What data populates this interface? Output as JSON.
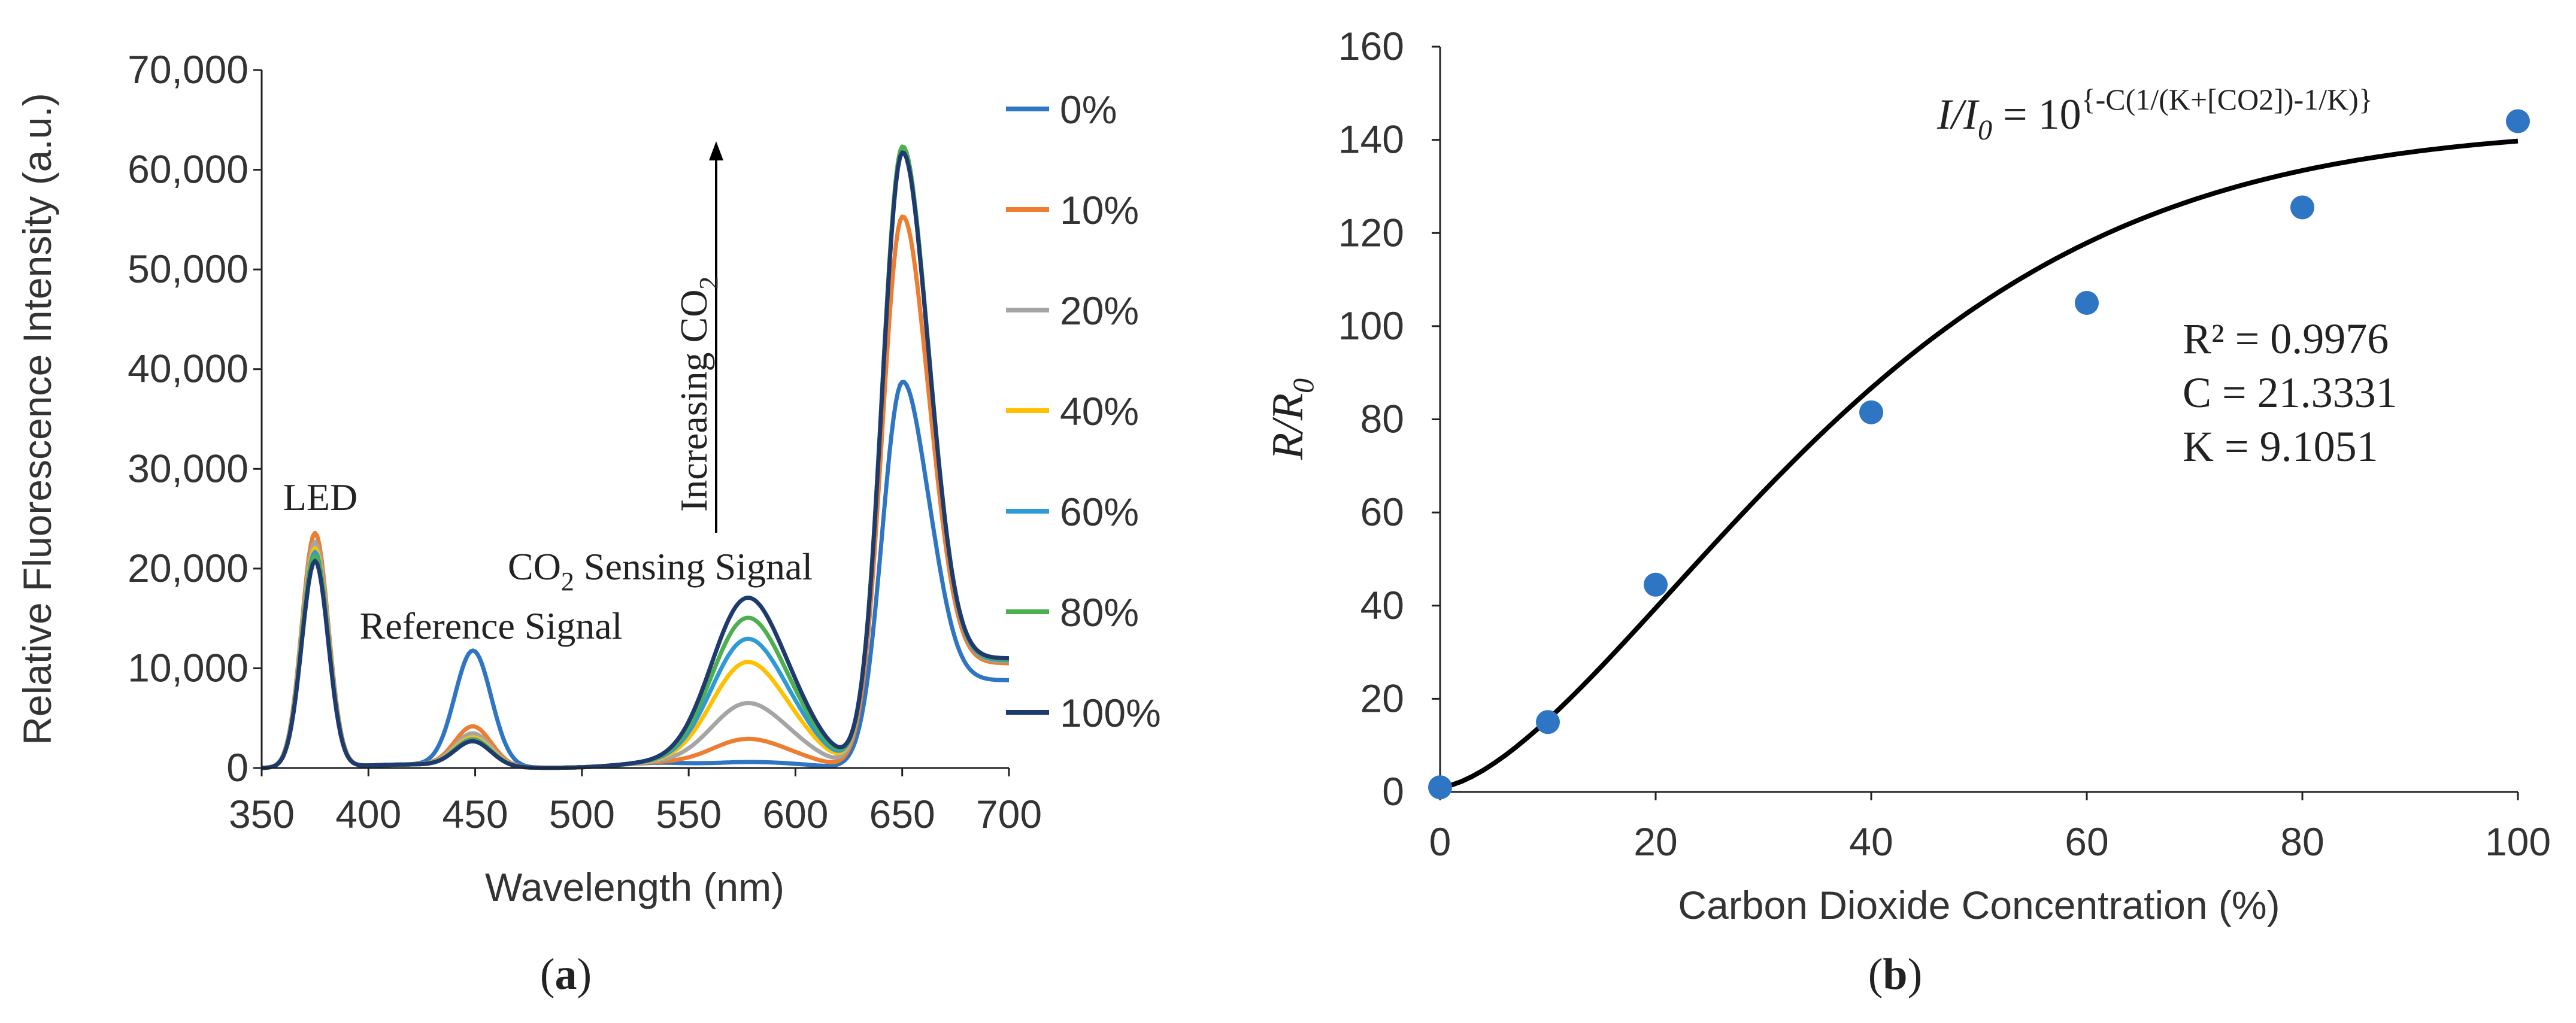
{
  "chart_data": [
    {
      "type": "line",
      "panel_label": "a",
      "xlabel": "Wavelength (nm)",
      "ylabel": "Relative Fluorescence Intensity (a.u.)",
      "xlim": [
        350,
        700
      ],
      "ylim": [
        0,
        70000
      ],
      "xticks": [
        350,
        400,
        450,
        500,
        550,
        600,
        650,
        700
      ],
      "yticks": [
        0,
        10000,
        20000,
        30000,
        40000,
        50000,
        60000,
        70000
      ],
      "xtick_labels": [
        "350",
        "400",
        "450",
        "500",
        "550",
        "600",
        "650",
        "700"
      ],
      "ytick_labels": [
        "0",
        "10,000",
        "20,000",
        "30,000",
        "40,000",
        "50,000",
        "60,000",
        "70,000"
      ],
      "legend_position": "right",
      "annotations": {
        "led": "LED",
        "reference": "Reference Signal",
        "sensing_pre": "CO",
        "sensing_sub": "2",
        "sensing_post": " Sensing Signal",
        "arrow_pre": "Increasing  CO",
        "arrow_sub": "2"
      },
      "series": [
        {
          "name": "0%",
          "color": "#2e75c4",
          "led_peak": 23500,
          "ref_peak": 11600,
          "sense_peak": 500,
          "main_peak": 38300,
          "tail": 8800
        },
        {
          "name": "10%",
          "color": "#ed7d31",
          "led_peak": 23500,
          "ref_peak": 4000,
          "sense_peak": 2700,
          "main_peak": 54800,
          "tail": 10500
        },
        {
          "name": "20%",
          "color": "#a5a5a5",
          "led_peak": 22600,
          "ref_peak": 3300,
          "sense_peak": 6100,
          "main_peak": 61500,
          "tail": 10700
        },
        {
          "name": "40%",
          "color": "#ffc000",
          "led_peak": 22000,
          "ref_peak": 2900,
          "sense_peak": 10000,
          "main_peak": 61500,
          "tail": 10800
        },
        {
          "name": "60%",
          "color": "#2f9bd6",
          "led_peak": 21600,
          "ref_peak": 2700,
          "sense_peak": 12200,
          "main_peak": 61500,
          "tail": 10800
        },
        {
          "name": "80%",
          "color": "#4caf50",
          "led_peak": 21200,
          "ref_peak": 2600,
          "sense_peak": 14200,
          "main_peak": 61800,
          "tail": 10900
        },
        {
          "name": "100%",
          "color": "#1f3a6e",
          "led_peak": 20700,
          "ref_peak": 2500,
          "sense_peak": 16100,
          "main_peak": 61200,
          "tail": 11000
        }
      ]
    },
    {
      "type": "scatter",
      "panel_label": "b",
      "xlabel": "Carbon Dioxide Concentration (%)",
      "ylabel_main": "R/R",
      "ylabel_sub": "0",
      "xlim": [
        0,
        100
      ],
      "ylim": [
        0,
        160
      ],
      "xticks": [
        0,
        20,
        40,
        60,
        80,
        100
      ],
      "yticks": [
        0,
        20,
        40,
        60,
        80,
        100,
        120,
        140,
        160
      ],
      "xtick_labels": [
        "0",
        "20",
        "40",
        "60",
        "80",
        "100"
      ],
      "ytick_labels": [
        "0",
        "20",
        "40",
        "60",
        "80",
        "100",
        "120",
        "140",
        "160"
      ],
      "points": {
        "x": [
          0,
          10,
          20,
          40,
          60,
          80,
          100
        ],
        "y": [
          1,
          15,
          44.5,
          81.5,
          105,
          125.5,
          144
        ]
      },
      "point_color": "#2e75c4",
      "fit": {
        "C": 21.3331,
        "K": 9.1051,
        "scale": 141.8,
        "color": "#000000"
      },
      "equation": {
        "i_main": "I/I",
        "i_sub": "0",
        "eq": " = 10",
        "exponent": "{-C(1/(K+[CO2])-1/K)}"
      },
      "stats": [
        "R² = 0.9976",
        "C = 21.3331",
        "K = 9.1051"
      ]
    }
  ]
}
